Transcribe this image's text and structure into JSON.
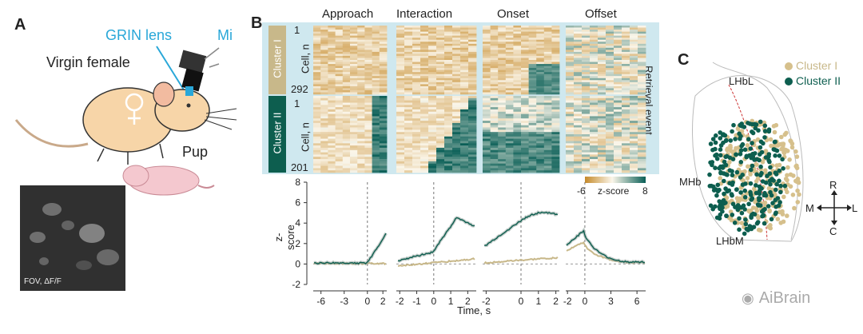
{
  "panels": {
    "a": "A",
    "b": "B",
    "c": "C"
  },
  "panel_a": {
    "grin_lens": "GRIN lens",
    "microscope_cut": "Mi",
    "virgin_female": "Virgin female",
    "pup": "Pup",
    "fov_label": "FOV, ΔF/F",
    "colors": {
      "mouse_body": "#f7d5a8",
      "lens": "#29a7d8",
      "pup_body": "#f4c8cf"
    }
  },
  "panel_b": {
    "column_titles": [
      "Approach",
      "Interaction",
      "Onset",
      "Offset"
    ],
    "cluster1": {
      "name": "Cluster I",
      "first": "1",
      "last": "292",
      "axis": "Cell, n"
    },
    "cluster2": {
      "name": "Cluster II",
      "first": "1",
      "last": "201",
      "axis": "Cell, n"
    },
    "retrieval_event": "Retrieval event",
    "colorbar": {
      "min": "-6",
      "label": "z-score",
      "max": "8"
    },
    "y_axis_label": "z-score",
    "y_ticks": [
      "8",
      "6",
      "4",
      "2",
      "0",
      "-2"
    ],
    "x_axis_label": "Time, s",
    "x_ticks_approach": [
      "-6",
      "-3",
      "0",
      "2"
    ],
    "x_ticks_interaction": [
      "-2",
      "-1",
      "0",
      "1",
      "2"
    ],
    "x_ticks_onset": [
      "-2",
      "0",
      "1",
      "2"
    ],
    "x_ticks_offset": [
      "-2",
      "0",
      "3",
      "6"
    ],
    "colors": {
      "cluster1": "#c8b88a",
      "cluster2": "#0d5e4f",
      "heat_neg": "#c58a2a",
      "heat_pos": "#0a5f57",
      "frame": "#cfe8ef"
    }
  },
  "panel_c": {
    "legend": [
      "Cluster I",
      "Cluster II"
    ],
    "lhbl": "LHbL",
    "mhb": "MHb",
    "lhbm": "LHbM",
    "dir_r": "R",
    "dir_c": "C",
    "dir_m": "M",
    "dir_l": "L"
  },
  "watermark": "AiBrain"
}
